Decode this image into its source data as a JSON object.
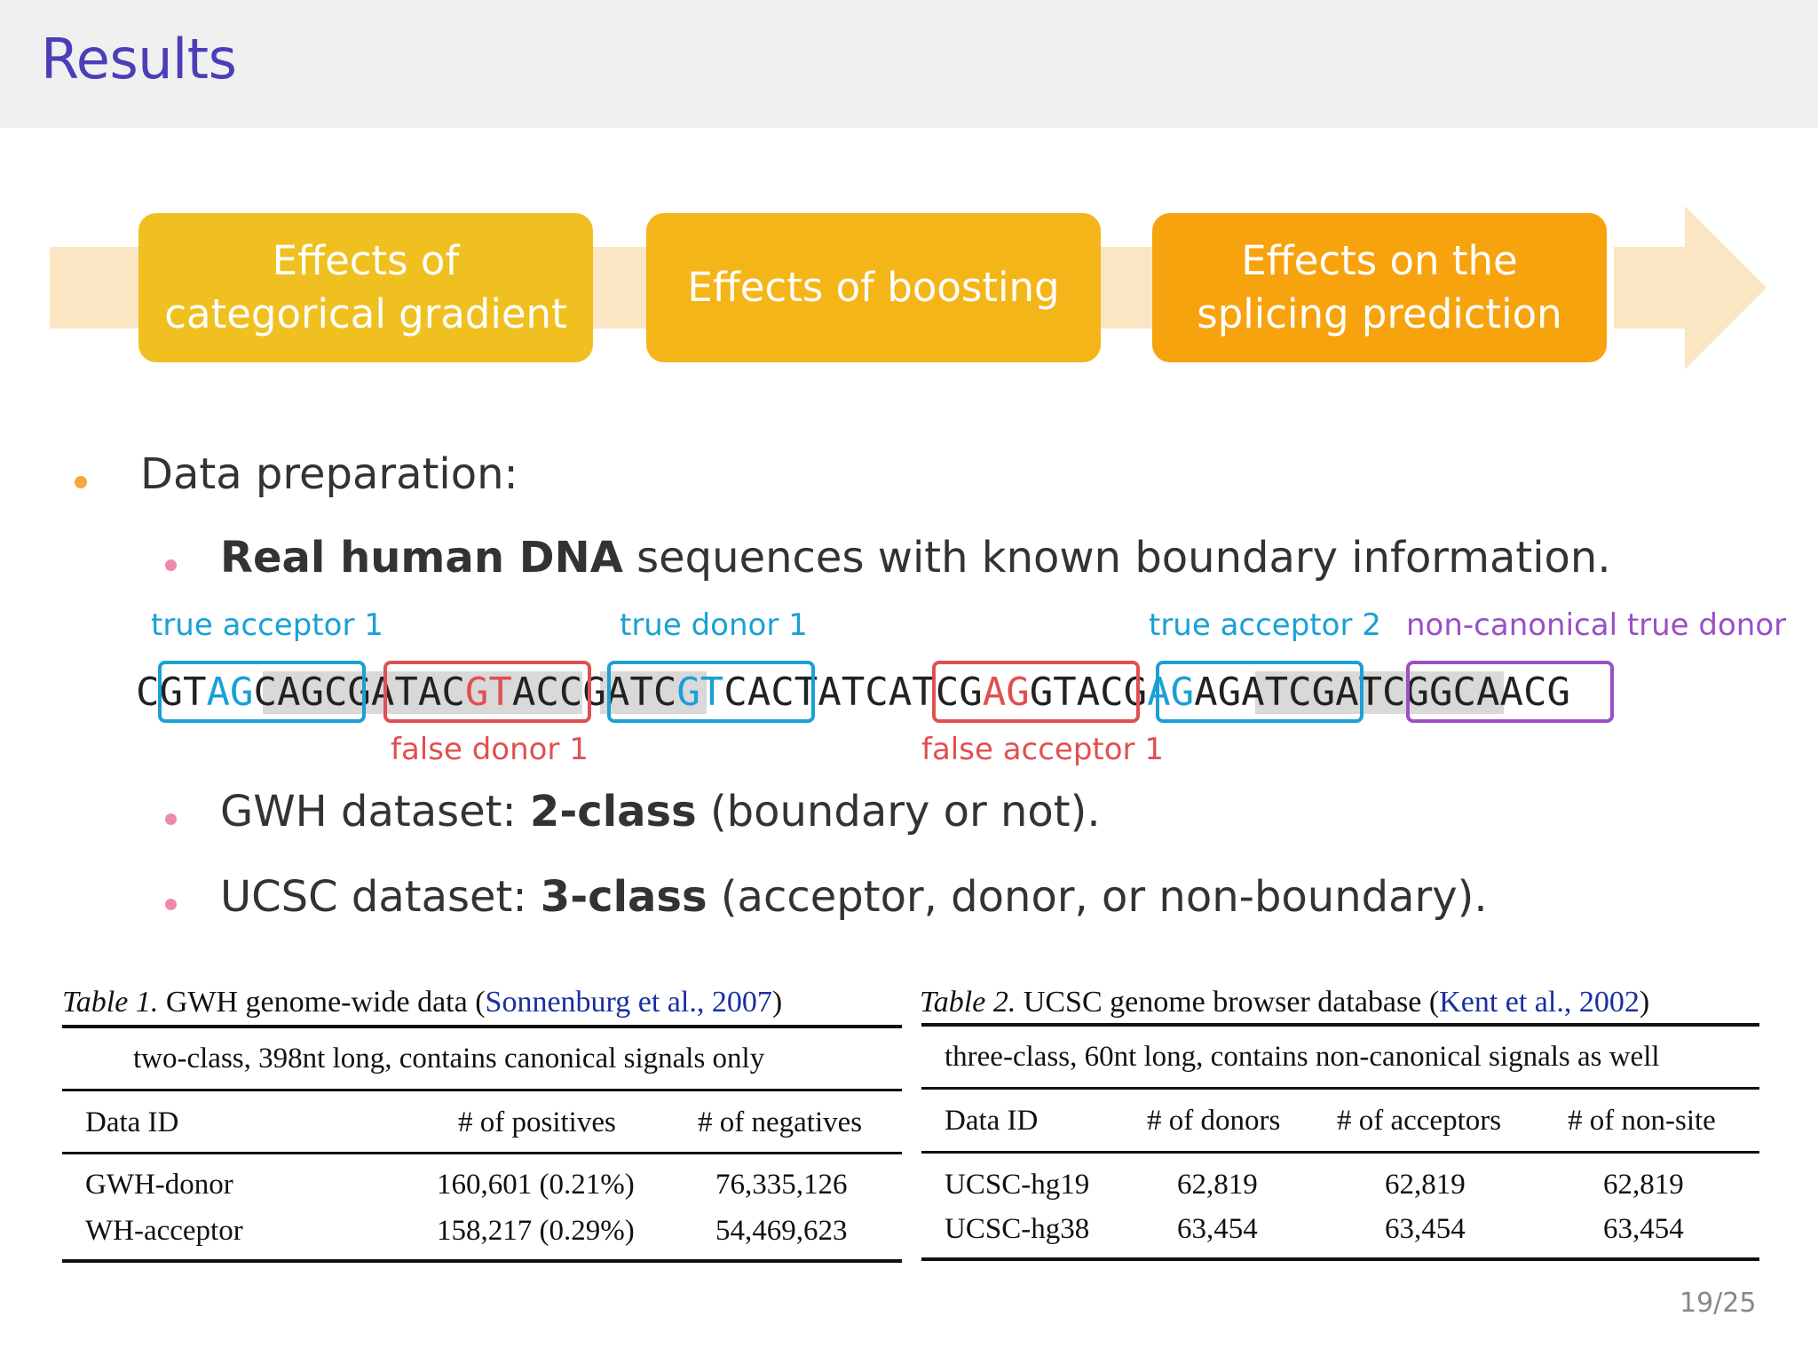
{
  "header": {
    "title": "Results"
  },
  "flow": {
    "steps": [
      {
        "line1": "Effects of",
        "line2": "categorical gradient",
        "color": "#f0c020"
      },
      {
        "line1": "Effects of boosting",
        "line2": "",
        "color": "#f4b518"
      },
      {
        "line1": "Effects on the",
        "line2": "splicing prediction",
        "color": "#f7a30e"
      }
    ],
    "arrow_color": "#fbe6c4"
  },
  "bullets": {
    "main": "Data preparation:",
    "sub1_bold": "Real human DNA",
    "sub1_rest": " sequences with known boundary information.",
    "sub2_pre": "GWH dataset: ",
    "sub2_bold": "2-class",
    "sub2_post": " (boundary or not).",
    "sub3_pre": "UCSC dataset: ",
    "sub3_bold": "3-class",
    "sub3_post": " (acceptor, donor, or non-boundary)."
  },
  "sequence": {
    "labels": {
      "true_acceptor_1": "true acceptor 1",
      "true_donor_1": "true donor 1",
      "true_acceptor_2": "true acceptor 2",
      "non_canonical": "non-canonical true donor",
      "false_donor_1": "false donor 1",
      "false_acceptor_1": "false acceptor 1"
    },
    "segments": [
      {
        "t": "CGT",
        "c": ""
      },
      {
        "t": "AG",
        "c": "c-blue"
      },
      {
        "t": "CAGCGATAC",
        "c": ""
      },
      {
        "t": "GT",
        "c": "c-red"
      },
      {
        "t": "ACCGATC",
        "c": ""
      },
      {
        "t": "GT",
        "c": "c-blue"
      },
      {
        "t": "CACTATCATCG",
        "c": ""
      },
      {
        "t": "AG",
        "c": "c-red"
      },
      {
        "t": "GTACG",
        "c": ""
      },
      {
        "t": "AG",
        "c": "c-blue"
      },
      {
        "t": "AGATCGATCGGCAACG",
        "c": ""
      }
    ],
    "colors": {
      "blue": "#1aa0d6",
      "red": "#e05050",
      "purple": "#9a4fc8"
    }
  },
  "table1": {
    "caption_label": "Table 1.",
    "caption_text": " GWH genome-wide data (",
    "caption_cite": "Sonnenburg et al., 2007",
    "caption_close": ")",
    "subtitle": "two-class, 398nt long, contains canonical signals only",
    "headers": [
      "Data ID",
      "# of positives",
      "# of negatives"
    ],
    "rows": [
      [
        "GWH-donor",
        "160,601 (0.21%)",
        "76,335,126"
      ],
      [
        "WH-acceptor",
        "158,217 (0.29%)",
        "54,469,623"
      ]
    ]
  },
  "table2": {
    "caption_label": "Table 2.",
    "caption_text": " UCSC genome browser database (",
    "caption_cite": "Kent et al., 2002",
    "caption_close": ")",
    "subtitle": "three-class, 60nt long, contains non-canonical signals as well",
    "headers": [
      "Data ID",
      "# of donors",
      "# of acceptors",
      "# of non-site"
    ],
    "rows": [
      [
        "UCSC-hg19",
        "62,819",
        "62,819",
        "62,819"
      ],
      [
        "UCSC-hg38",
        "63,454",
        "63,454",
        "63,454"
      ]
    ]
  },
  "page_number": "19/25"
}
